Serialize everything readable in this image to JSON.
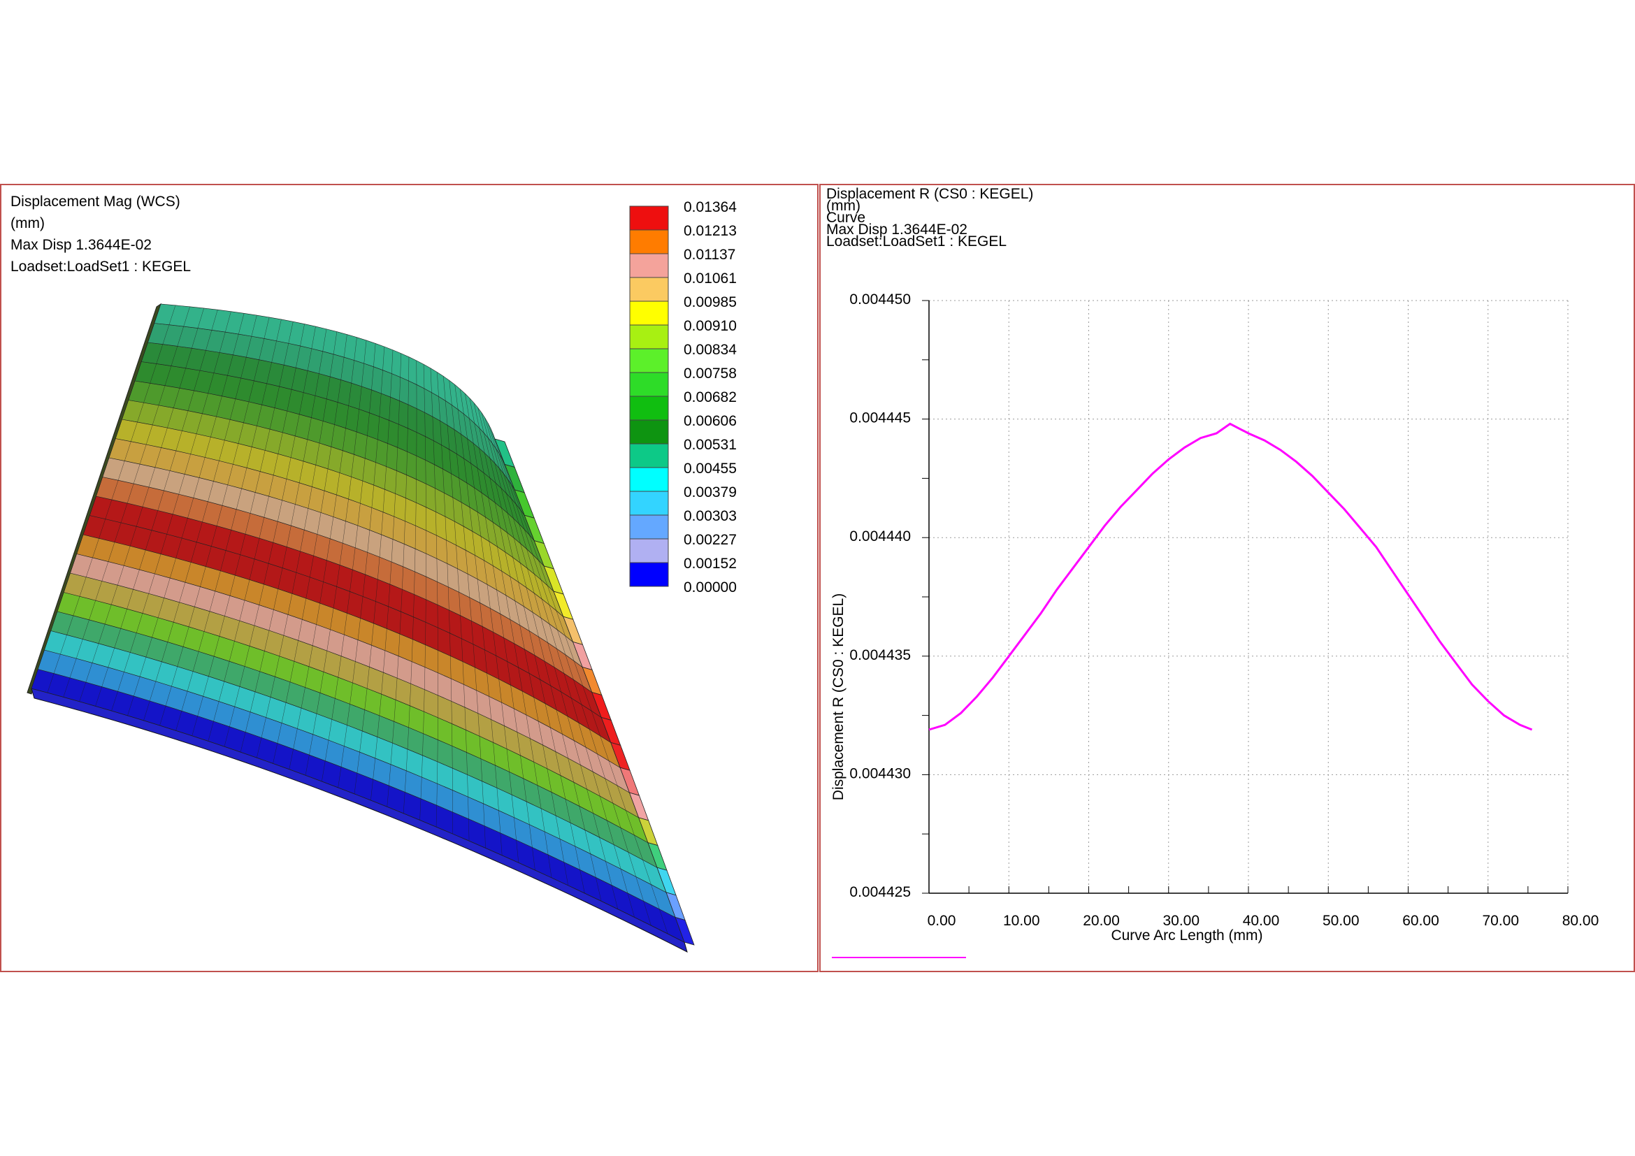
{
  "left_panel": {
    "header": {
      "line1": "Displacement Mag (WCS)",
      "line2": "(mm)",
      "line3": "Max Disp  1.3644E-02",
      "line4": "Loadset:LoadSet1 :  KEGEL"
    },
    "legend": {
      "labels": [
        "0.01364",
        "0.01213",
        "0.01137",
        "0.01061",
        "0.00985",
        "0.00910",
        "0.00834",
        "0.00758",
        "0.00682",
        "0.00606",
        "0.00531",
        "0.00455",
        "0.00379",
        "0.00303",
        "0.00227",
        "0.00152",
        "0.00000"
      ],
      "colors": [
        "#ee0f0f",
        "#ff7c00",
        "#f4a39b",
        "#fbca61",
        "#ffff00",
        "#a8f012",
        "#5cf02a",
        "#2edc28",
        "#10be10",
        "#0e9411",
        "#0dc987",
        "#00ffff",
        "#33d4ff",
        "#64a8ff",
        "#b0b0f2",
        "#0000ff"
      ]
    },
    "band_colors": [
      "#1414c8",
      "#2f8fd2",
      "#33c2c2",
      "#3fa86a",
      "#6fbe2a",
      "#b3a044",
      "#d39b8b",
      "#c9862a",
      "#b31818",
      "#b51818",
      "#c66c3a",
      "#c9a27e",
      "#c8a040",
      "#b7b12a",
      "#86a92a",
      "#4e9a2c",
      "#2e8b2e",
      "#2a8a3a",
      "#2fa070",
      "#33b28a"
    ],
    "edge_strip_colors": [
      "#22c086",
      "#2fb23c",
      "#46c82d",
      "#66d12f",
      "#9ad72a",
      "#d9e427",
      "#f2ea2a",
      "#f4c06b",
      "#f1a0a0",
      "#f28a2f",
      "#f01c1c",
      "#ee1e1e",
      "#ee2424",
      "#f07878",
      "#f1a4a4",
      "#ccd23a",
      "#3fcf7d",
      "#3fd6f0",
      "#6aa0ff",
      "#2222e6"
    ]
  },
  "right_panel": {
    "header": {
      "line1": "Displacement R (CS0 : KEGEL)",
      "line2": "(mm)",
      "line3": "Curve",
      "line4": "Max Disp  1.3644E-02",
      "line5": "Loadset:LoadSet1 :  KEGEL"
    },
    "chart_data": {
      "type": "line",
      "xlabel": "Curve Arc Length (mm)",
      "ylabel": "Displacement R (CS0 : KEGEL)",
      "xlim": [
        0,
        80
      ],
      "ylim": [
        0.004425,
        0.00445
      ],
      "x_tick_labels": [
        "0.00",
        "10.00",
        "20.00",
        "30.00",
        "40.00",
        "50.00",
        "60.00",
        "70.00",
        "80.00"
      ],
      "y_tick_labels": [
        "0.004425",
        "0.004430",
        "0.004435",
        "0.004440",
        "0.004445",
        "0.004450"
      ],
      "grid": true,
      "series": [
        {
          "color": "#ff00ff",
          "x": [
            0,
            2,
            4,
            6,
            8,
            10,
            12,
            14,
            16,
            18,
            20,
            22,
            24,
            26,
            28,
            30,
            32,
            34,
            36,
            37.7,
            40,
            42,
            44,
            46,
            48,
            50,
            52,
            54,
            56,
            58,
            60,
            62,
            64,
            66,
            68,
            70,
            72,
            74,
            75.5
          ],
          "y": [
            0.0044319,
            0.0044321,
            0.0044326,
            0.0044333,
            0.0044341,
            0.004435,
            0.0044359,
            0.0044368,
            0.0044378,
            0.0044387,
            0.0044396,
            0.0044405,
            0.0044413,
            0.004442,
            0.0044427,
            0.0044433,
            0.0044438,
            0.0044442,
            0.0044444,
            0.0044448,
            0.0044444,
            0.0044441,
            0.0044437,
            0.0044432,
            0.0044426,
            0.0044419,
            0.0044412,
            0.0044404,
            0.0044396,
            0.0044386,
            0.0044376,
            0.0044366,
            0.0044356,
            0.0044347,
            0.0044338,
            0.0044331,
            0.0044325,
            0.0044321,
            0.0044319
          ]
        }
      ]
    }
  }
}
